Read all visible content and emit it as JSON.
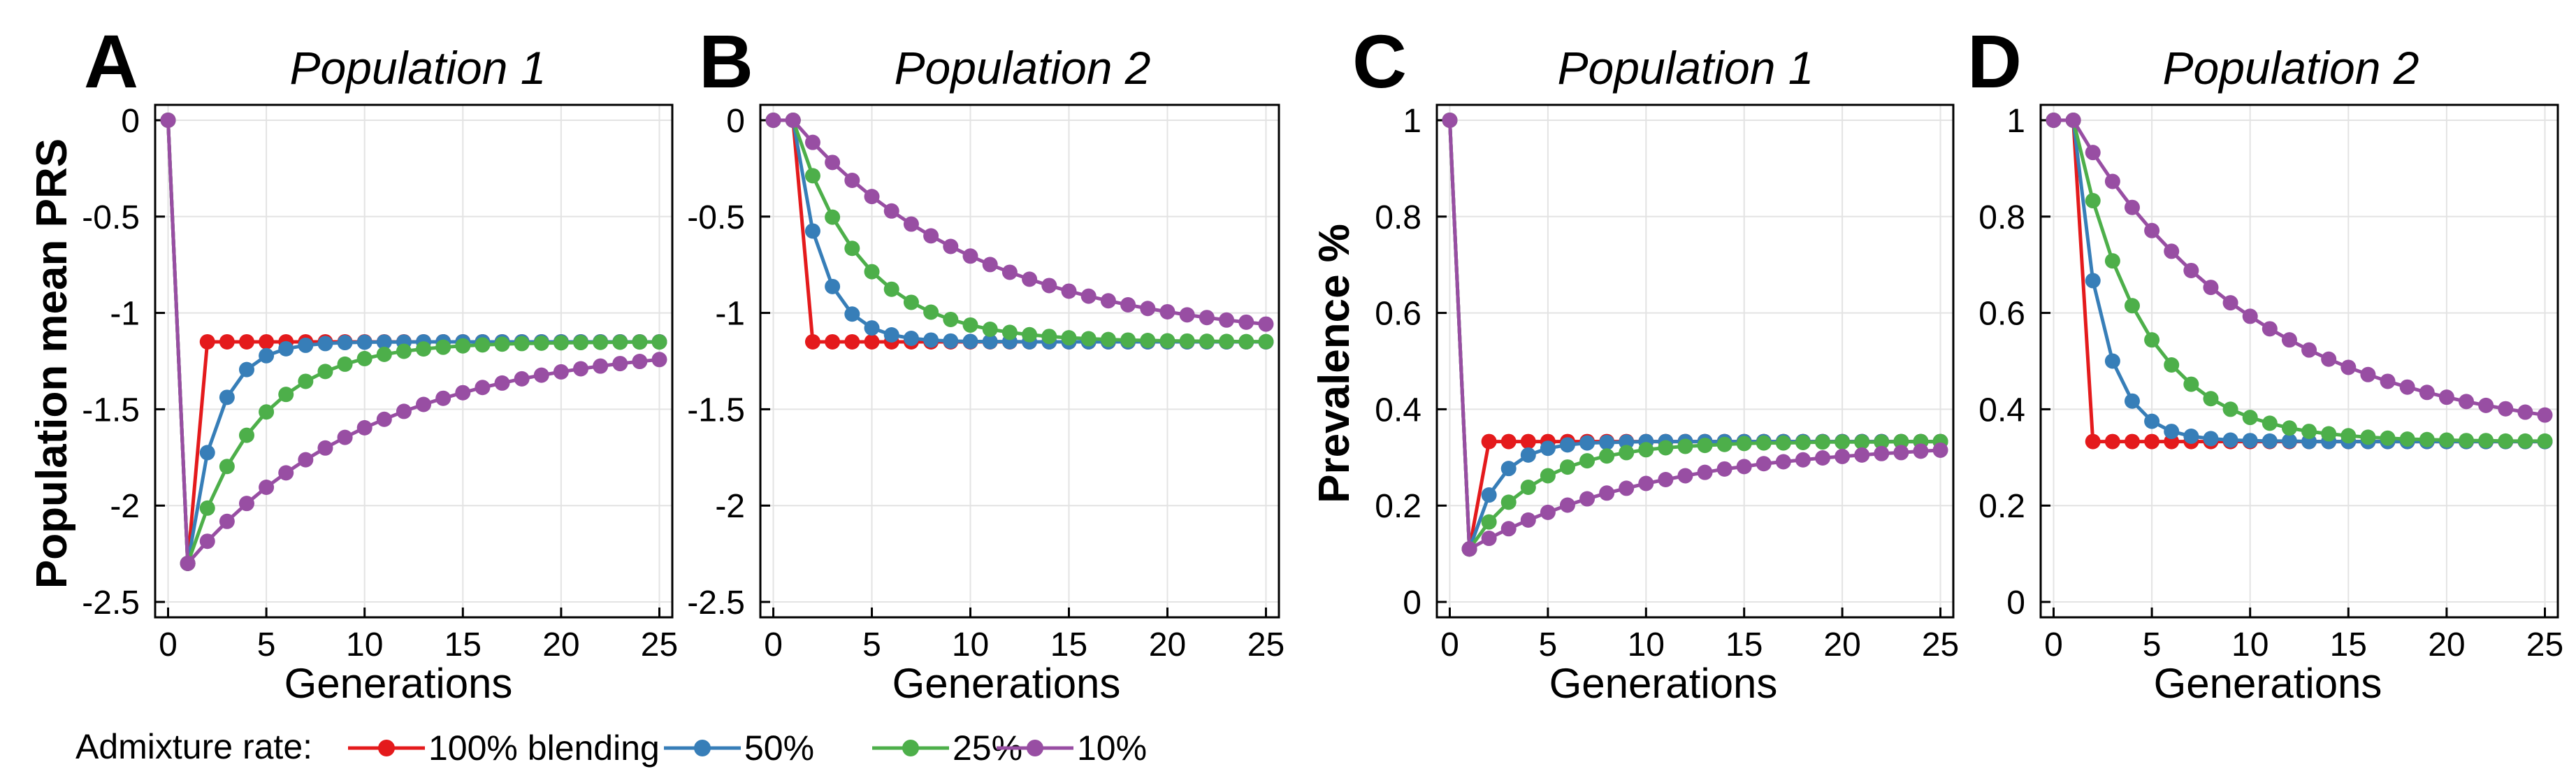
{
  "legend": {
    "title": "Admixture rate:",
    "entries": [
      "100% blending",
      "50%",
      "25%",
      "10%"
    ]
  },
  "colors": {
    "100% blending": "#e41a1c",
    "50%": "#377eb8",
    "25%": "#4daf4a",
    "10%": "#984ea3",
    "grid": "#e3e3e3",
    "axis": "#000000"
  },
  "chart_data": [
    {
      "type": "line",
      "panel_letter": "A",
      "title": "Population 1",
      "xlabel": "Generations",
      "ylabel": "Population mean PRS",
      "xlim": [
        0,
        25
      ],
      "ylim": [
        -2.5,
        0
      ],
      "xticks": [
        0,
        5,
        10,
        15,
        20,
        25
      ],
      "yticks": [
        0,
        -0.5,
        -1,
        -1.5,
        -2,
        -2.5
      ],
      "ytick_labels": [
        "0",
        "-0.5",
        "-1",
        "-1.5",
        "-2",
        "-2.5"
      ],
      "grid": true,
      "x": [
        0,
        1,
        2,
        3,
        4,
        5,
        6,
        7,
        8,
        9,
        10,
        11,
        12,
        13,
        14,
        15,
        16,
        17,
        18,
        19,
        20,
        21,
        22,
        23,
        24,
        25
      ],
      "series": [
        {
          "name": "100% blending",
          "values": [
            0,
            -2.3,
            -1.15,
            -1.15,
            -1.15,
            -1.15,
            -1.15,
            -1.15,
            -1.15,
            -1.15,
            -1.15,
            -1.15,
            -1.15,
            -1.15,
            -1.15,
            -1.15,
            -1.15,
            -1.15,
            -1.15,
            -1.15,
            -1.15,
            -1.15,
            -1.15,
            -1.15,
            -1.15,
            -1.15
          ]
        },
        {
          "name": "50%",
          "values": [
            0,
            -2.3,
            -1.725,
            -1.438,
            -1.294,
            -1.222,
            -1.186,
            -1.168,
            -1.159,
            -1.154,
            -1.152,
            -1.151,
            -1.151,
            -1.15,
            -1.15,
            -1.15,
            -1.15,
            -1.15,
            -1.15,
            -1.15,
            -1.15,
            -1.15,
            -1.15,
            -1.15,
            -1.15,
            -1.15
          ]
        },
        {
          "name": "25%",
          "values": [
            0,
            -2.3,
            -2.013,
            -1.797,
            -1.635,
            -1.514,
            -1.423,
            -1.355,
            -1.304,
            -1.266,
            -1.237,
            -1.215,
            -1.199,
            -1.187,
            -1.178,
            -1.171,
            -1.166,
            -1.162,
            -1.159,
            -1.157,
            -1.155,
            -1.154,
            -1.153,
            -1.152,
            -1.151,
            -1.151
          ]
        },
        {
          "name": "10%",
          "values": [
            0,
            -2.3,
            -2.185,
            -2.082,
            -1.989,
            -1.905,
            -1.83,
            -1.762,
            -1.701,
            -1.646,
            -1.596,
            -1.552,
            -1.511,
            -1.475,
            -1.443,
            -1.414,
            -1.387,
            -1.364,
            -1.342,
            -1.323,
            -1.306,
            -1.29,
            -1.276,
            -1.263,
            -1.252,
            -1.242
          ]
        }
      ]
    },
    {
      "type": "line",
      "panel_letter": "B",
      "title": "Population 2",
      "xlabel": "Generations",
      "ylabel": "",
      "xlim": [
        0,
        25
      ],
      "ylim": [
        -2.5,
        0
      ],
      "xticks": [
        0,
        5,
        10,
        15,
        20,
        25
      ],
      "yticks": [
        0,
        -0.5,
        -1,
        -1.5,
        -2,
        -2.5
      ],
      "ytick_labels": [
        "0",
        "-0.5",
        "-1",
        "-1.5",
        "-2",
        "-2.5"
      ],
      "grid": true,
      "x": [
        0,
        1,
        2,
        3,
        4,
        5,
        6,
        7,
        8,
        9,
        10,
        11,
        12,
        13,
        14,
        15,
        16,
        17,
        18,
        19,
        20,
        21,
        22,
        23,
        24,
        25
      ],
      "series": [
        {
          "name": "100% blending",
          "values": [
            0,
            0,
            -1.15,
            -1.15,
            -1.15,
            -1.15,
            -1.15,
            -1.15,
            -1.15,
            -1.15,
            -1.15,
            -1.15,
            -1.15,
            -1.15,
            -1.15,
            -1.15,
            -1.15,
            -1.15,
            -1.15,
            -1.15,
            -1.15,
            -1.15,
            -1.15,
            -1.15,
            -1.15,
            -1.15
          ]
        },
        {
          "name": "50%",
          "values": [
            0,
            0,
            -0.575,
            -0.863,
            -1.006,
            -1.078,
            -1.114,
            -1.132,
            -1.141,
            -1.146,
            -1.148,
            -1.149,
            -1.149,
            -1.15,
            -1.15,
            -1.15,
            -1.15,
            -1.15,
            -1.15,
            -1.15,
            -1.15,
            -1.15,
            -1.15,
            -1.15,
            -1.15,
            -1.15
          ]
        },
        {
          "name": "25%",
          "values": [
            0,
            0,
            -0.288,
            -0.503,
            -0.665,
            -0.786,
            -0.877,
            -0.945,
            -0.996,
            -1.034,
            -1.063,
            -1.085,
            -1.101,
            -1.113,
            -1.122,
            -1.129,
            -1.134,
            -1.138,
            -1.141,
            -1.143,
            -1.145,
            -1.146,
            -1.147,
            -1.148,
            -1.149,
            -1.149
          ]
        },
        {
          "name": "10%",
          "values": [
            0,
            0,
            -0.115,
            -0.219,
            -0.312,
            -0.396,
            -0.471,
            -0.539,
            -0.6,
            -0.655,
            -0.705,
            -0.749,
            -0.789,
            -0.825,
            -0.858,
            -0.887,
            -0.913,
            -0.937,
            -0.958,
            -0.977,
            -0.994,
            -1.01,
            -1.024,
            -1.037,
            -1.048,
            -1.058
          ]
        }
      ]
    },
    {
      "type": "line",
      "panel_letter": "C",
      "title": "Population 1",
      "xlabel": "Generations",
      "ylabel": "Prevalence %",
      "xlim": [
        0,
        25
      ],
      "ylim": [
        0,
        1
      ],
      "xticks": [
        0,
        5,
        10,
        15,
        20,
        25
      ],
      "yticks": [
        0,
        0.2,
        0.4,
        0.6,
        0.8,
        1
      ],
      "ytick_labels": [
        "0",
        "0.2",
        "0.4",
        "0.6",
        "0.8",
        "1"
      ],
      "grid": true,
      "x": [
        0,
        1,
        2,
        3,
        4,
        5,
        6,
        7,
        8,
        9,
        10,
        11,
        12,
        13,
        14,
        15,
        16,
        17,
        18,
        19,
        20,
        21,
        22,
        23,
        24,
        25
      ],
      "series": [
        {
          "name": "100% blending",
          "values": [
            1,
            0.11,
            0.333,
            0.333,
            0.333,
            0.333,
            0.333,
            0.333,
            0.333,
            0.333,
            0.333,
            0.333,
            0.333,
            0.333,
            0.333,
            0.333,
            0.333,
            0.333,
            0.333,
            0.333,
            0.333,
            0.333,
            0.333,
            0.333,
            0.333,
            0.333
          ]
        },
        {
          "name": "50%",
          "values": [
            1,
            0.11,
            0.222,
            0.277,
            0.305,
            0.319,
            0.326,
            0.33,
            0.331,
            0.332,
            0.333,
            0.333,
            0.333,
            0.333,
            0.333,
            0.333,
            0.333,
            0.333,
            0.333,
            0.333,
            0.333,
            0.333,
            0.333,
            0.333,
            0.333,
            0.333
          ]
        },
        {
          "name": "25%",
          "values": [
            1,
            0.11,
            0.166,
            0.207,
            0.238,
            0.262,
            0.28,
            0.293,
            0.303,
            0.31,
            0.316,
            0.32,
            0.323,
            0.325,
            0.327,
            0.329,
            0.33,
            0.33,
            0.331,
            0.332,
            0.332,
            0.332,
            0.332,
            0.333,
            0.333,
            0.333
          ]
        },
        {
          "name": "10%",
          "values": [
            1,
            0.11,
            0.132,
            0.152,
            0.17,
            0.186,
            0.201,
            0.214,
            0.226,
            0.236,
            0.246,
            0.254,
            0.262,
            0.269,
            0.276,
            0.281,
            0.287,
            0.291,
            0.295,
            0.299,
            0.302,
            0.305,
            0.308,
            0.31,
            0.313,
            0.315
          ]
        }
      ]
    },
    {
      "type": "line",
      "panel_letter": "D",
      "title": "Population 2",
      "xlabel": "Generations",
      "ylabel": "",
      "xlim": [
        0,
        25
      ],
      "ylim": [
        0,
        1
      ],
      "xticks": [
        0,
        5,
        10,
        15,
        20,
        25
      ],
      "yticks": [
        0,
        0.2,
        0.4,
        0.6,
        0.8,
        1
      ],
      "ytick_labels": [
        "0",
        "0.2",
        "0.4",
        "0.6",
        "0.8",
        "1"
      ],
      "grid": true,
      "x": [
        0,
        1,
        2,
        3,
        4,
        5,
        6,
        7,
        8,
        9,
        10,
        11,
        12,
        13,
        14,
        15,
        16,
        17,
        18,
        19,
        20,
        21,
        22,
        23,
        24,
        25
      ],
      "series": [
        {
          "name": "100% blending",
          "values": [
            1,
            1,
            0.333,
            0.333,
            0.333,
            0.333,
            0.333,
            0.333,
            0.333,
            0.333,
            0.333,
            0.333,
            0.333,
            0.333,
            0.333,
            0.333,
            0.333,
            0.333,
            0.333,
            0.333,
            0.333,
            0.333,
            0.333,
            0.333,
            0.333,
            0.333
          ]
        },
        {
          "name": "50%",
          "values": [
            1,
            1,
            0.667,
            0.5,
            0.417,
            0.375,
            0.354,
            0.344,
            0.339,
            0.336,
            0.335,
            0.334,
            0.334,
            0.333,
            0.333,
            0.333,
            0.333,
            0.333,
            0.333,
            0.333,
            0.333,
            0.333,
            0.333,
            0.333,
            0.333,
            0.333
          ]
        },
        {
          "name": "25%",
          "values": [
            1,
            1,
            0.833,
            0.708,
            0.615,
            0.544,
            0.492,
            0.452,
            0.422,
            0.4,
            0.383,
            0.371,
            0.361,
            0.354,
            0.349,
            0.345,
            0.342,
            0.34,
            0.338,
            0.337,
            0.336,
            0.335,
            0.335,
            0.334,
            0.334,
            0.334
          ]
        },
        {
          "name": "10%",
          "values": [
            1,
            1,
            0.933,
            0.873,
            0.819,
            0.771,
            0.728,
            0.688,
            0.653,
            0.621,
            0.593,
            0.567,
            0.544,
            0.523,
            0.504,
            0.487,
            0.472,
            0.458,
            0.446,
            0.435,
            0.425,
            0.416,
            0.408,
            0.401,
            0.394,
            0.388
          ]
        }
      ]
    }
  ]
}
